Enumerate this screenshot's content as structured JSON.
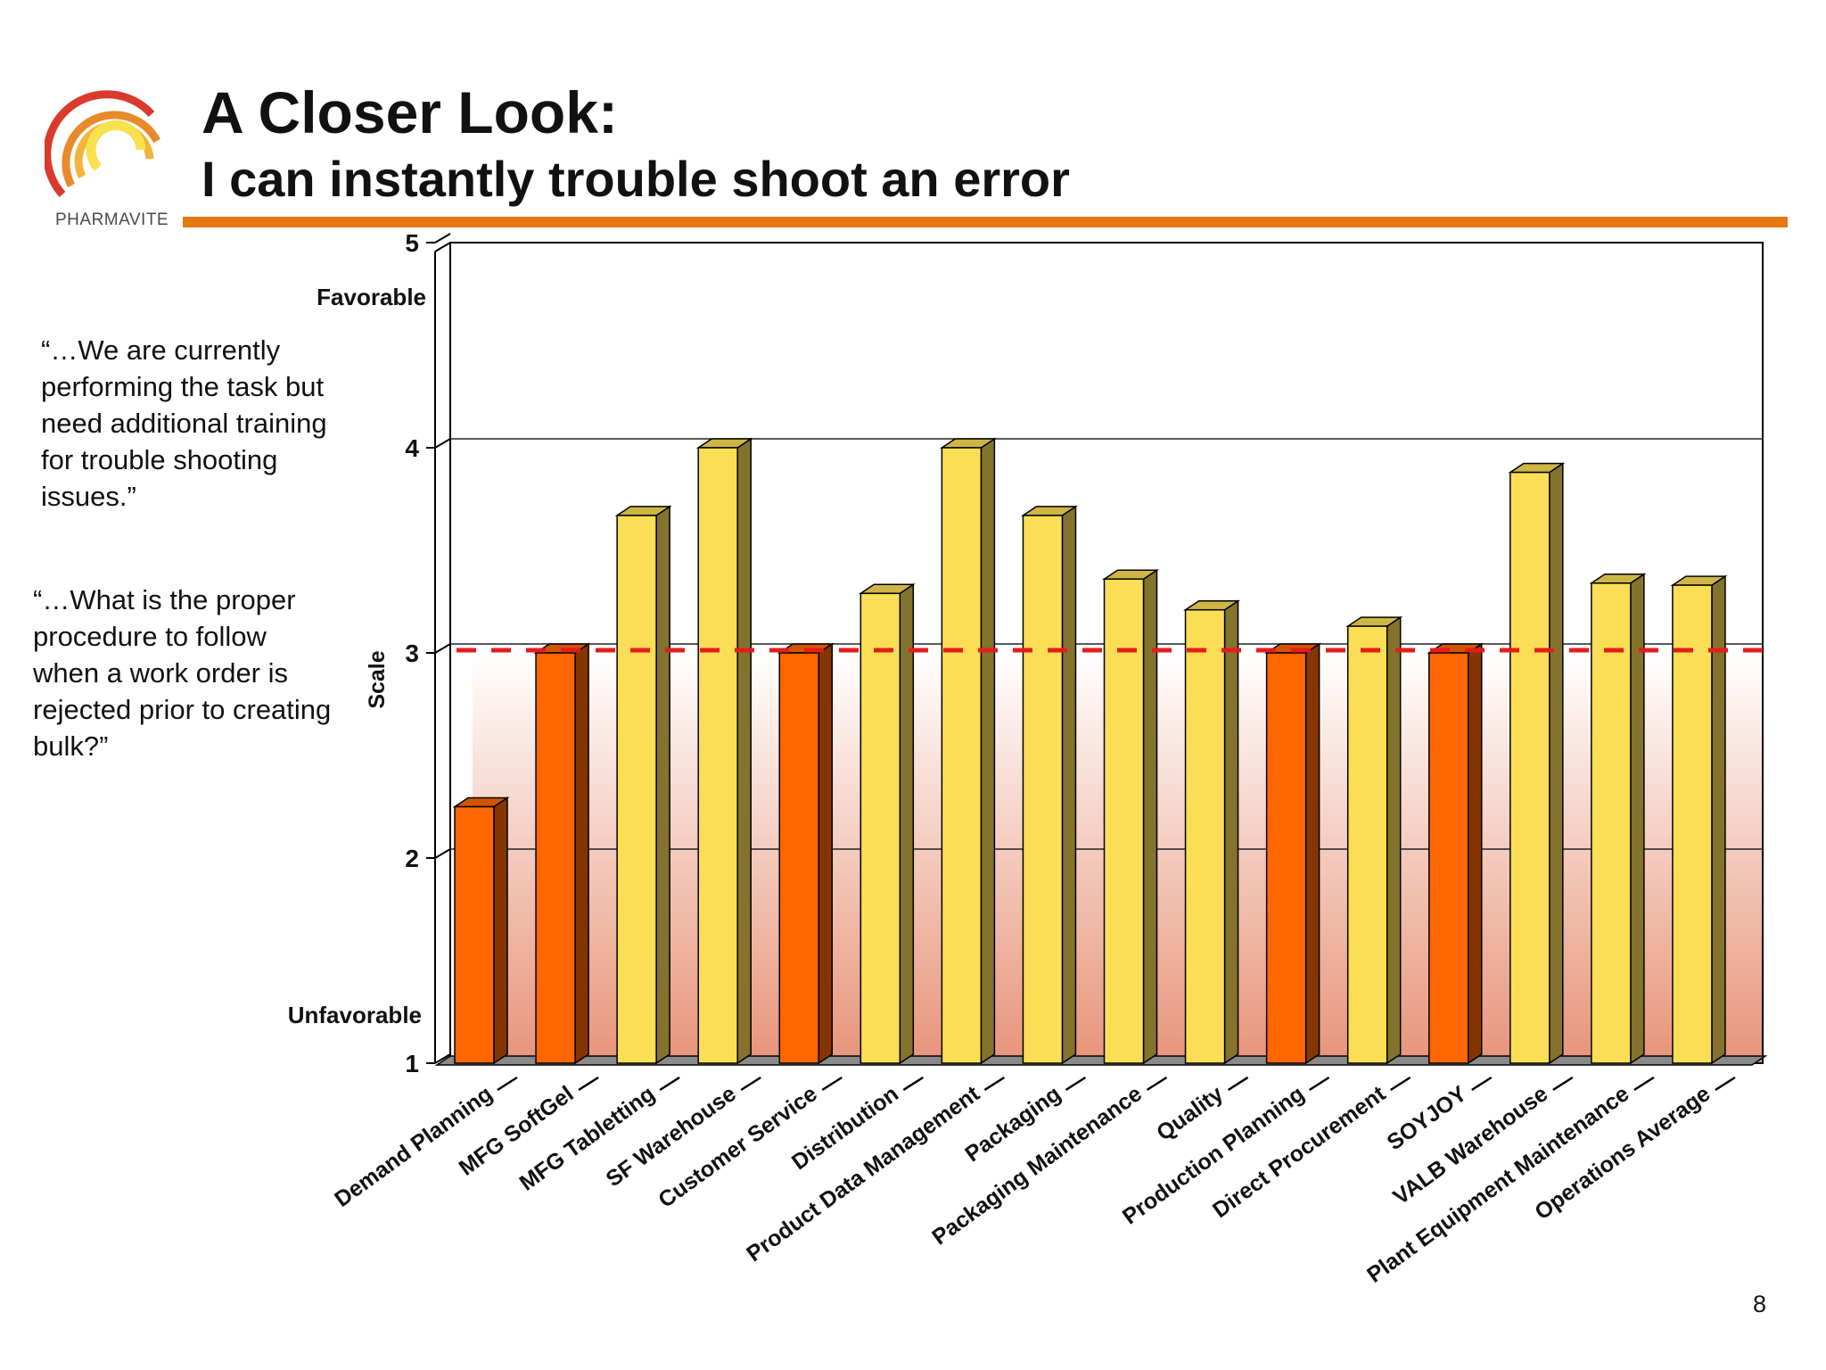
{
  "brand": {
    "logo_text": "PHARMAVITE"
  },
  "title": "A Closer Look:",
  "subtitle": "I can instantly trouble shoot an error",
  "quotes": [
    "“…We are currently performing the task but need additional training for trouble shooting issues.”",
    "“…What is the proper procedure to follow when a work order is rejected prior to creating bulk?”"
  ],
  "page_number": "8",
  "colors": {
    "accent": "#e67812",
    "below_threshold": "#ff6600",
    "at_or_above_threshold": "#fbde55",
    "threshold_line": "#e51c1c"
  },
  "chart_data": {
    "type": "bar",
    "title": "",
    "xlabel": "",
    "ylabel": "Scale",
    "ylim": [
      1,
      5
    ],
    "yticks": [
      1,
      2,
      3,
      4,
      5
    ],
    "y_annotations": {
      "top": "Favorable",
      "bottom": "Unfavorable"
    },
    "threshold": 3,
    "grid": true,
    "categories": [
      "Demand Planning",
      "MFG SoftGel",
      "MFG Tabletting",
      "SF Warehouse",
      "Customer Service",
      "Distribution",
      "Product Data Management",
      "Packaging",
      "Packaging Maintenance",
      "Quality",
      "Production Planning",
      "Direct Procurement",
      "SOYJOY",
      "VALB Warehouse",
      "Plant Equipment Maintenance",
      "Operations Average"
    ],
    "values": [
      2.25,
      3.0,
      3.67,
      4.0,
      3.0,
      3.29,
      4.0,
      3.67,
      3.36,
      3.21,
      3.0,
      3.13,
      3.0,
      3.88,
      3.34,
      3.33
    ],
    "highlighted": [
      true,
      true,
      false,
      false,
      true,
      false,
      false,
      false,
      false,
      false,
      true,
      false,
      true,
      false,
      false,
      false
    ]
  }
}
